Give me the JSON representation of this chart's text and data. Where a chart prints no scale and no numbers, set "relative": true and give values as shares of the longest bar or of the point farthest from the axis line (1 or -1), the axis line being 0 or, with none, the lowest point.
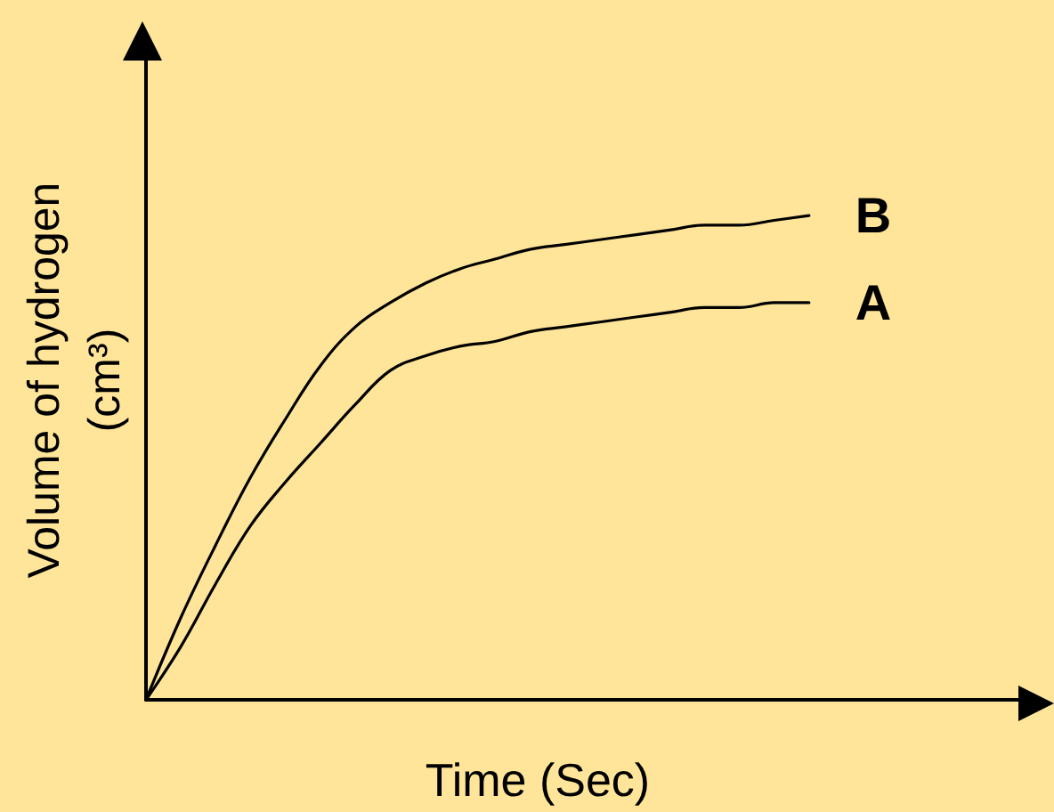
{
  "chart_data": {
    "type": "line",
    "relative": true,
    "xlabel": "Time (Sec)",
    "ylabel": "Volume of hydrogen (cm³)",
    "categories": [
      null,
      null,
      null,
      null,
      null,
      null,
      null,
      null,
      null,
      null,
      null,
      null,
      null,
      null,
      null,
      null,
      null,
      null,
      null,
      null,
      null,
      null,
      null,
      null,
      null,
      null
    ],
    "series": [
      {
        "name": "B",
        "color": "#000000",
        "values": [
          0,
          0.17,
          0.32,
          0.46,
          0.58,
          0.69,
          0.77,
          0.82,
          0.86,
          0.89,
          0.91,
          0.93,
          0.94,
          0.95,
          0.96,
          0.97,
          0.98,
          0.98,
          0.99,
          1,
          null,
          null,
          null,
          null,
          null,
          null
        ]
      },
      {
        "name": "A",
        "color": "#000000",
        "values": [
          0,
          0.11,
          0.24,
          0.36,
          0.45,
          0.53,
          0.61,
          0.68,
          0.71,
          0.73,
          0.74,
          0.76,
          0.77,
          0.78,
          0.79,
          0.8,
          0.81,
          0.81,
          0.82,
          0.82,
          null,
          null,
          null,
          null,
          null,
          null
        ]
      }
    ]
  }
}
